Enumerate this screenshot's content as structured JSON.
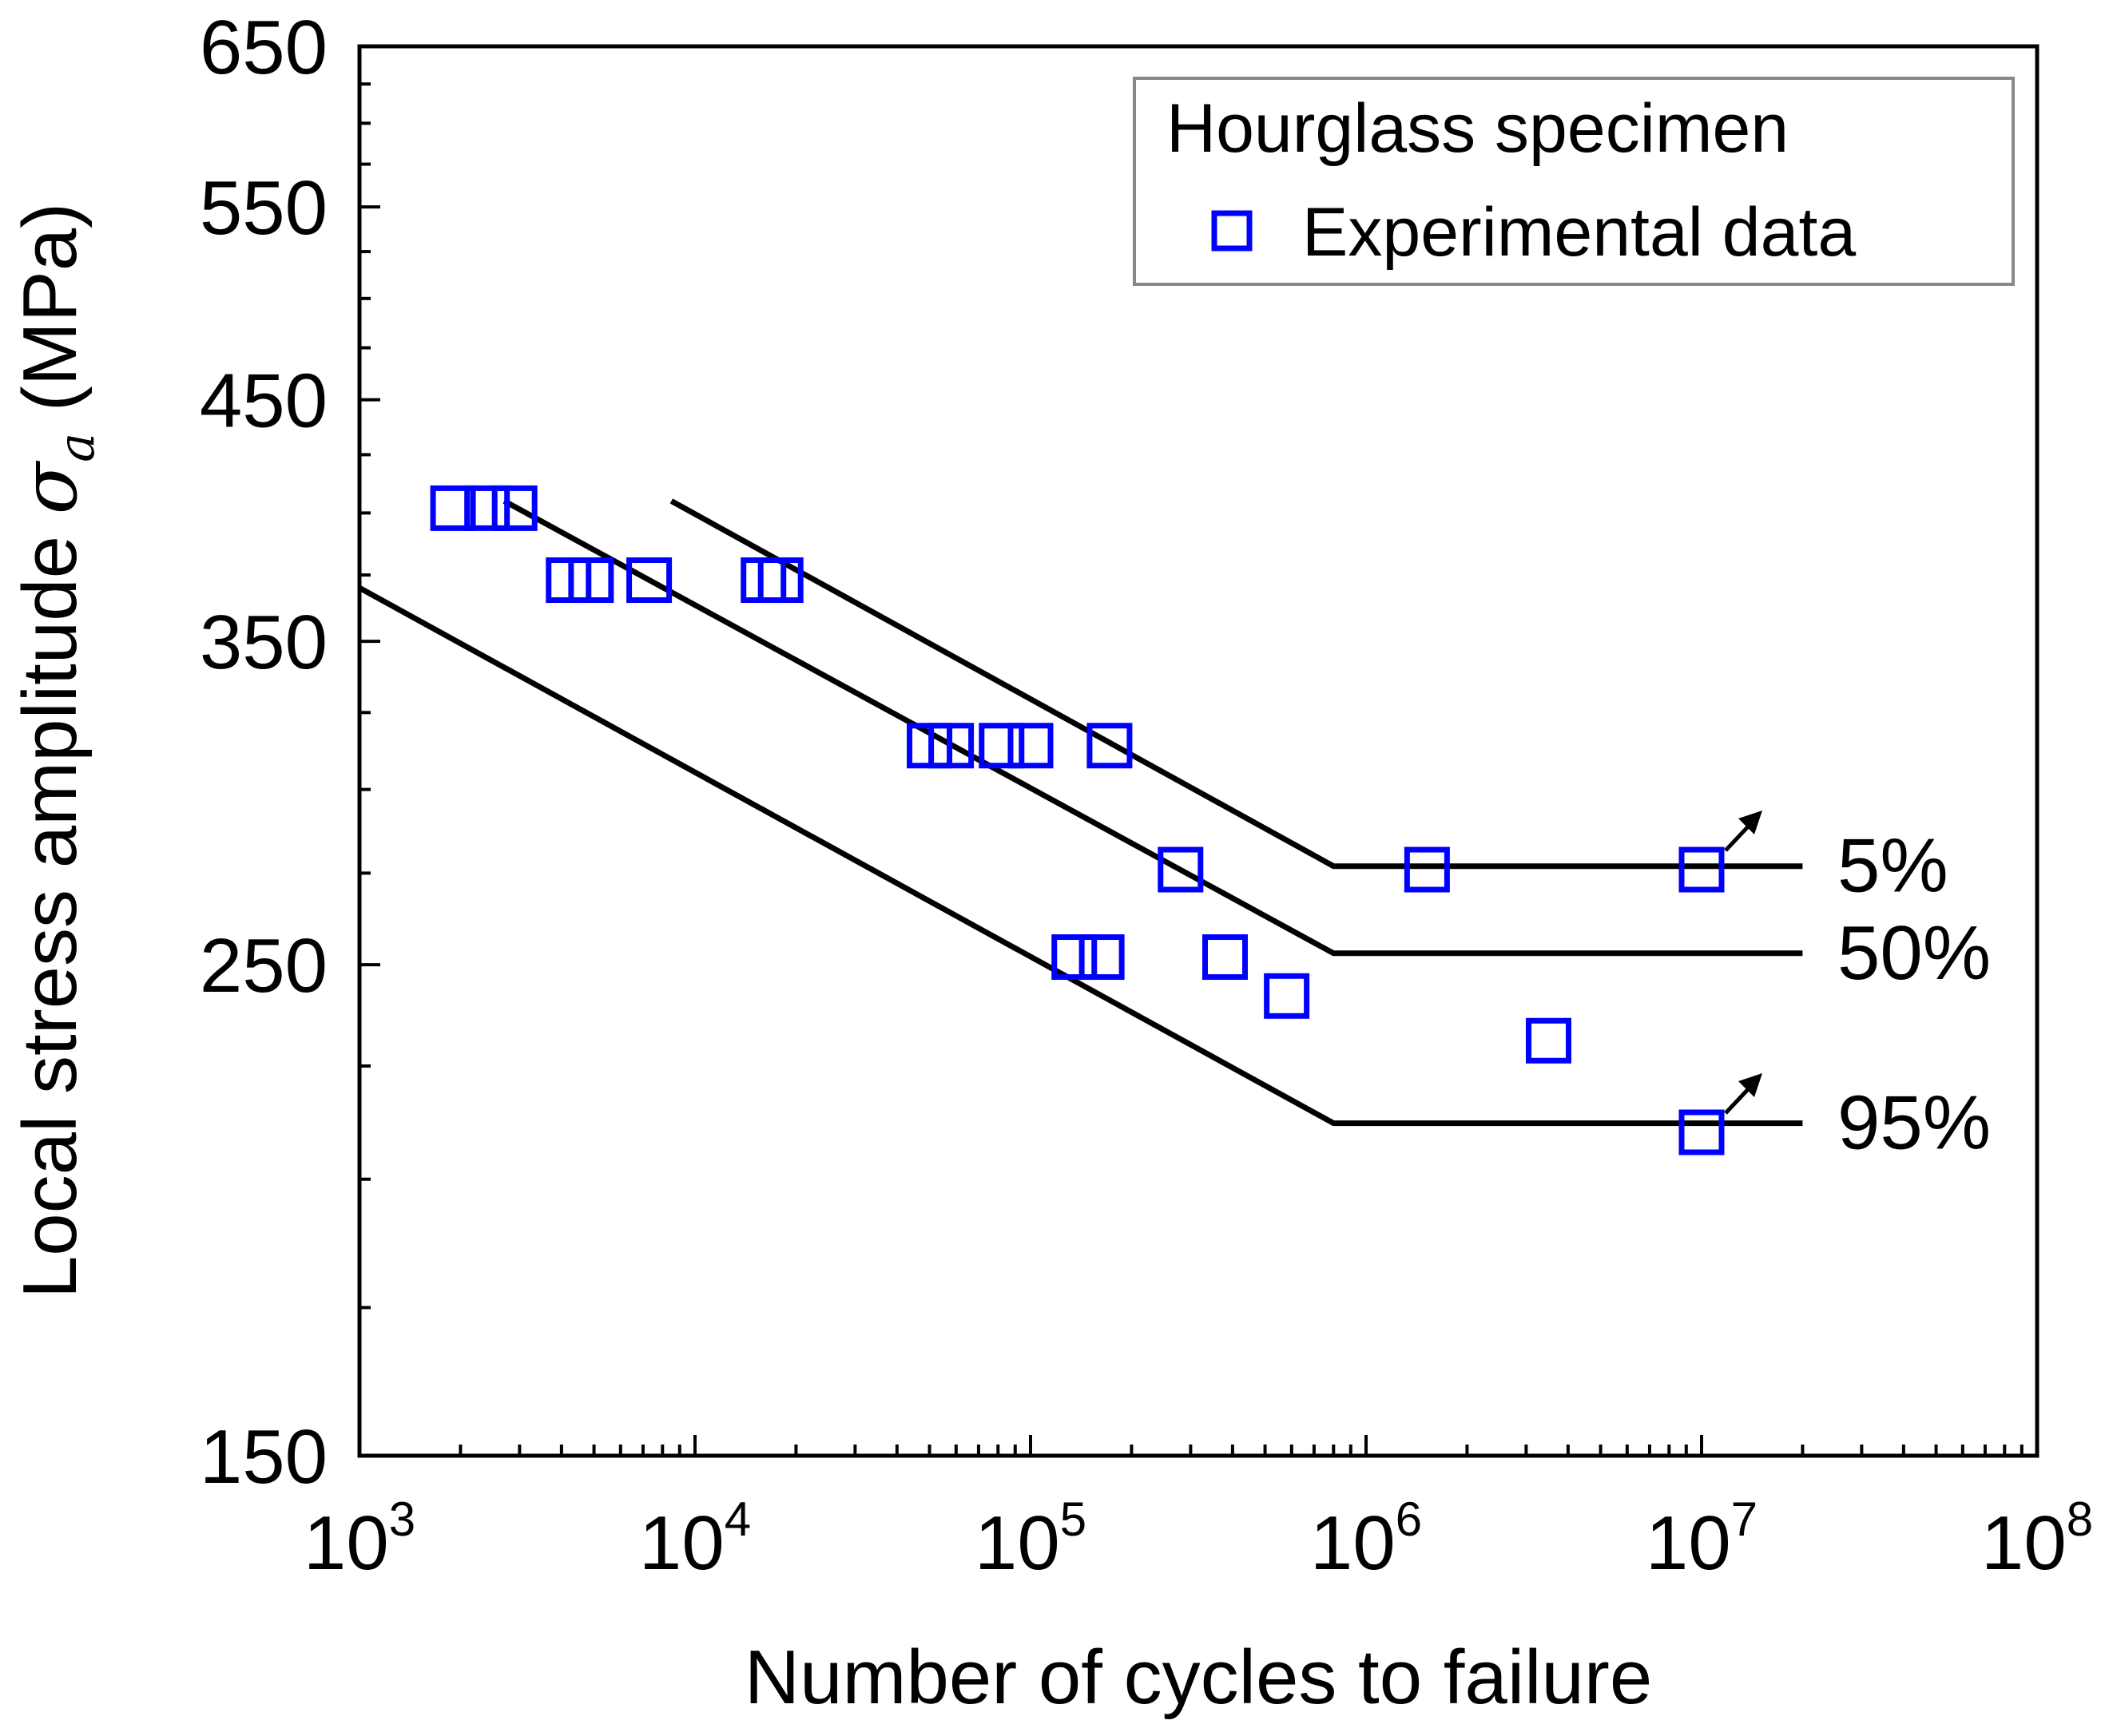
{
  "chart_data": {
    "type": "scatter",
    "title": "",
    "xlabel": "Number of cycles to failure",
    "ylabel_prefix": "Local stress amplitude ",
    "ylabel_symbol": "σ",
    "ylabel_subscript": "a",
    "ylabel_unit": " (MPa)",
    "xscale": "log",
    "yscale": "log",
    "xlim": [
      1000,
      100000000
    ],
    "ylim": [
      150,
      650
    ],
    "x_ticks": [
      {
        "value": 1000,
        "base": "10",
        "exp": "3"
      },
      {
        "value": 10000,
        "base": "10",
        "exp": "4"
      },
      {
        "value": 100000,
        "base": "10",
        "exp": "5"
      },
      {
        "value": 1000000,
        "base": "10",
        "exp": "6"
      },
      {
        "value": 10000000,
        "base": "10",
        "exp": "7"
      },
      {
        "value": 100000000,
        "base": "10",
        "exp": "8"
      }
    ],
    "y_ticks": [
      {
        "value": 150,
        "label": "150"
      },
      {
        "value": 250,
        "label": "250"
      },
      {
        "value": 350,
        "label": "350"
      },
      {
        "value": 450,
        "label": "450"
      },
      {
        "value": 550,
        "label": "550"
      },
      {
        "value": 650,
        "label": "650"
      }
    ],
    "legend": {
      "title": "Hourglass specimen",
      "entries": [
        {
          "name": "Experimental data",
          "marker": "open-square",
          "color": "#0000ff"
        }
      ],
      "placement": "top-right"
    },
    "series": [
      {
        "name": "Experimental data",
        "kind": "scatter",
        "color": "#0000ff",
        "points": [
          {
            "x": 1900,
            "y": 402
          },
          {
            "x": 2400,
            "y": 402
          },
          {
            "x": 2900,
            "y": 402
          },
          {
            "x": 4200,
            "y": 373
          },
          {
            "x": 4900,
            "y": 373
          },
          {
            "x": 7300,
            "y": 373
          },
          {
            "x": 16000,
            "y": 373
          },
          {
            "x": 18000,
            "y": 373
          },
          {
            "x": 50000,
            "y": 314
          },
          {
            "x": 58000,
            "y": 314
          },
          {
            "x": 82000,
            "y": 314
          },
          {
            "x": 100000,
            "y": 314
          },
          {
            "x": 172000,
            "y": 314
          },
          {
            "x": 280000,
            "y": 276
          },
          {
            "x": 135000,
            "y": 252
          },
          {
            "x": 163000,
            "y": 252
          },
          {
            "x": 380000,
            "y": 252
          },
          {
            "x": 580000,
            "y": 242
          },
          {
            "x": 1520000,
            "y": 276
          },
          {
            "x": 3500000,
            "y": 231
          },
          {
            "x": 10000000,
            "y": 276,
            "runout": true
          },
          {
            "x": 10000000,
            "y": 210,
            "runout": true
          }
        ]
      }
    ],
    "curves": [
      {
        "name": "5%",
        "label": "5%",
        "points": [
          {
            "x": 8500,
            "y": 405
          },
          {
            "x": 800000,
            "y": 277
          },
          {
            "x": 20000000,
            "y": 277
          }
        ]
      },
      {
        "name": "50%",
        "label": "50%",
        "points": [
          {
            "x": 2700,
            "y": 405
          },
          {
            "x": 800000,
            "y": 253
          },
          {
            "x": 20000000,
            "y": 253
          }
        ]
      },
      {
        "name": "95%",
        "label": "95%",
        "points": [
          {
            "x": 1000,
            "y": 370
          },
          {
            "x": 800000,
            "y": 212
          },
          {
            "x": 20000000,
            "y": 212
          }
        ]
      }
    ]
  }
}
